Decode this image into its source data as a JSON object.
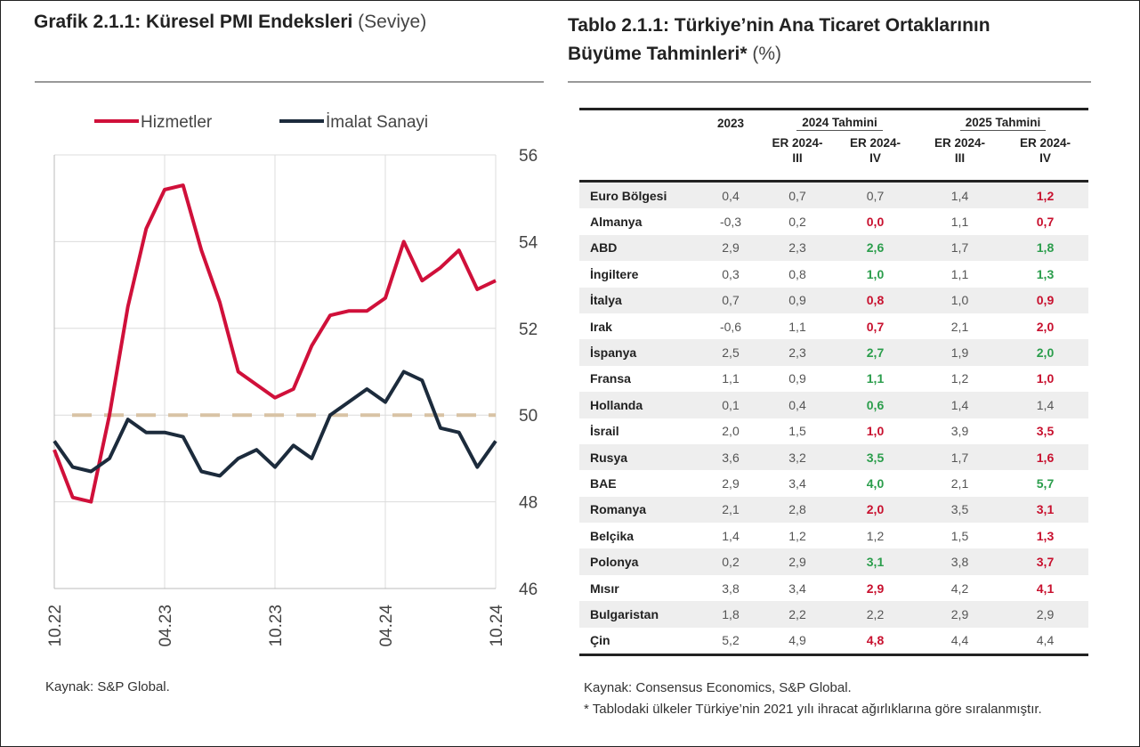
{
  "chart_data": {
    "type": "line",
    "title": "Grafik 2.1.1: Küresel PMI Endeksleri",
    "title_unit": "(Seviye)",
    "categories": [
      "10.22",
      null,
      null,
      null,
      null,
      null,
      "04.23",
      null,
      null,
      null,
      null,
      null,
      "10.23",
      null,
      null,
      null,
      null,
      null,
      "04.24",
      null,
      null,
      null,
      null,
      null,
      "10.24"
    ],
    "series": [
      {
        "name": "Hizmetler",
        "color": "#d0103a",
        "values": [
          49.2,
          48.1,
          48.0,
          50.0,
          52.5,
          54.3,
          55.2,
          55.3,
          53.8,
          52.6,
          51.0,
          50.7,
          50.4,
          50.6,
          51.6,
          52.3,
          52.4,
          52.4,
          52.7,
          54.0,
          53.1,
          53.4,
          53.8,
          52.9,
          53.1
        ]
      },
      {
        "name": "İmalat Sanayi",
        "color": "#1c2b3c",
        "values": [
          49.4,
          48.8,
          48.7,
          49.0,
          49.9,
          49.6,
          49.6,
          49.5,
          48.7,
          48.6,
          49.0,
          49.2,
          48.8,
          49.3,
          49.0,
          50.0,
          50.3,
          50.6,
          50.3,
          51.0,
          50.8,
          49.7,
          49.6,
          48.8,
          49.4
        ]
      }
    ],
    "ylim": [
      46,
      56
    ],
    "yticks": [
      46,
      48,
      50,
      52,
      54,
      56
    ],
    "grid": true,
    "reference_line": 50,
    "reference_color": "#d8c3a5",
    "source": "Kaynak: S&P Global."
  },
  "table": {
    "title": "Tablo 2.1.1: Türkiye’nin Ana Ticaret Ortaklarının Büyüme Tahminleri*",
    "title_unit": "(%)",
    "columns": [
      "2023"
    ],
    "groups": [
      "2024 Tahmini",
      "2025 Tahmini"
    ],
    "subcolumns": [
      "ER 2024-\nIII",
      "ER 2024-\nIV",
      "ER 2024-\nIII",
      "ER 2024-\nIV"
    ],
    "rows": [
      {
        "name": "Euro Bölgesi",
        "values": [
          "0,4",
          "0,7",
          "0,7",
          "1,4",
          "1,2"
        ],
        "colors": [
          null,
          null,
          null,
          null,
          "#c8102e"
        ]
      },
      {
        "name": "Almanya",
        "values": [
          "-0,3",
          "0,2",
          "0,0",
          "1,1",
          "0,7"
        ],
        "colors": [
          null,
          null,
          "#c8102e",
          null,
          "#c8102e"
        ]
      },
      {
        "name": "ABD",
        "values": [
          "2,9",
          "2,3",
          "2,6",
          "1,7",
          "1,8"
        ],
        "colors": [
          null,
          null,
          "#2a9d4b",
          null,
          "#2a9d4b"
        ]
      },
      {
        "name": "İngiltere",
        "values": [
          "0,3",
          "0,8",
          "1,0",
          "1,1",
          "1,3"
        ],
        "colors": [
          null,
          null,
          "#2a9d4b",
          null,
          "#2a9d4b"
        ]
      },
      {
        "name": "İtalya",
        "values": [
          "0,7",
          "0,9",
          "0,8",
          "1,0",
          "0,9"
        ],
        "colors": [
          null,
          null,
          "#c8102e",
          null,
          "#c8102e"
        ]
      },
      {
        "name": "Irak",
        "values": [
          "-0,6",
          "1,1",
          "0,7",
          "2,1",
          "2,0"
        ],
        "colors": [
          null,
          null,
          "#c8102e",
          null,
          "#c8102e"
        ]
      },
      {
        "name": "İspanya",
        "values": [
          "2,5",
          "2,3",
          "2,7",
          "1,9",
          "2,0"
        ],
        "colors": [
          null,
          null,
          "#2a9d4b",
          null,
          "#2a9d4b"
        ]
      },
      {
        "name": "Fransa",
        "values": [
          "1,1",
          "0,9",
          "1,1",
          "1,2",
          "1,0"
        ],
        "colors": [
          null,
          null,
          "#2a9d4b",
          null,
          "#c8102e"
        ]
      },
      {
        "name": "Hollanda",
        "values": [
          "0,1",
          "0,4",
          "0,6",
          "1,4",
          "1,4"
        ],
        "colors": [
          null,
          null,
          "#2a9d4b",
          null,
          null
        ]
      },
      {
        "name": "İsrail",
        "values": [
          "2,0",
          "1,5",
          "1,0",
          "3,9",
          "3,5"
        ],
        "colors": [
          null,
          null,
          "#c8102e",
          null,
          "#c8102e"
        ]
      },
      {
        "name": "Rusya",
        "values": [
          "3,6",
          "3,2",
          "3,5",
          "1,7",
          "1,6"
        ],
        "colors": [
          null,
          null,
          "#2a9d4b",
          null,
          "#c8102e"
        ]
      },
      {
        "name": "BAE",
        "values": [
          "2,9",
          "3,4",
          "4,0",
          "2,1",
          "5,7"
        ],
        "colors": [
          null,
          null,
          "#2a9d4b",
          null,
          "#2a9d4b"
        ]
      },
      {
        "name": "Romanya",
        "values": [
          "2,1",
          "2,8",
          "2,0",
          "3,5",
          "3,1"
        ],
        "colors": [
          null,
          null,
          "#c8102e",
          null,
          "#c8102e"
        ]
      },
      {
        "name": "Belçika",
        "values": [
          "1,4",
          "1,2",
          "1,2",
          "1,5",
          "1,3"
        ],
        "colors": [
          null,
          null,
          null,
          null,
          "#c8102e"
        ]
      },
      {
        "name": "Polonya",
        "values": [
          "0,2",
          "2,9",
          "3,1",
          "3,8",
          "3,7"
        ],
        "colors": [
          null,
          null,
          "#2a9d4b",
          null,
          "#c8102e"
        ]
      },
      {
        "name": "Mısır",
        "values": [
          "3,8",
          "3,4",
          "2,9",
          "4,2",
          "4,1"
        ],
        "colors": [
          null,
          null,
          "#c8102e",
          null,
          "#c8102e"
        ]
      },
      {
        "name": "Bulgaristan",
        "values": [
          "1,8",
          "2,2",
          "2,2",
          "2,9",
          "2,9"
        ],
        "colors": [
          null,
          null,
          null,
          null,
          null
        ]
      },
      {
        "name": "Çin",
        "values": [
          "5,2",
          "4,9",
          "4,8",
          "4,4",
          "4,4"
        ],
        "colors": [
          null,
          null,
          "#c8102e",
          null,
          null
        ]
      }
    ],
    "source": "Kaynak: Consensus Economics, S&P Global.",
    "note": "* Tablodaki ülkeler Türkiye’nin 2021 yılı ihracat ağırlıklarına göre sıralanmıştır."
  }
}
